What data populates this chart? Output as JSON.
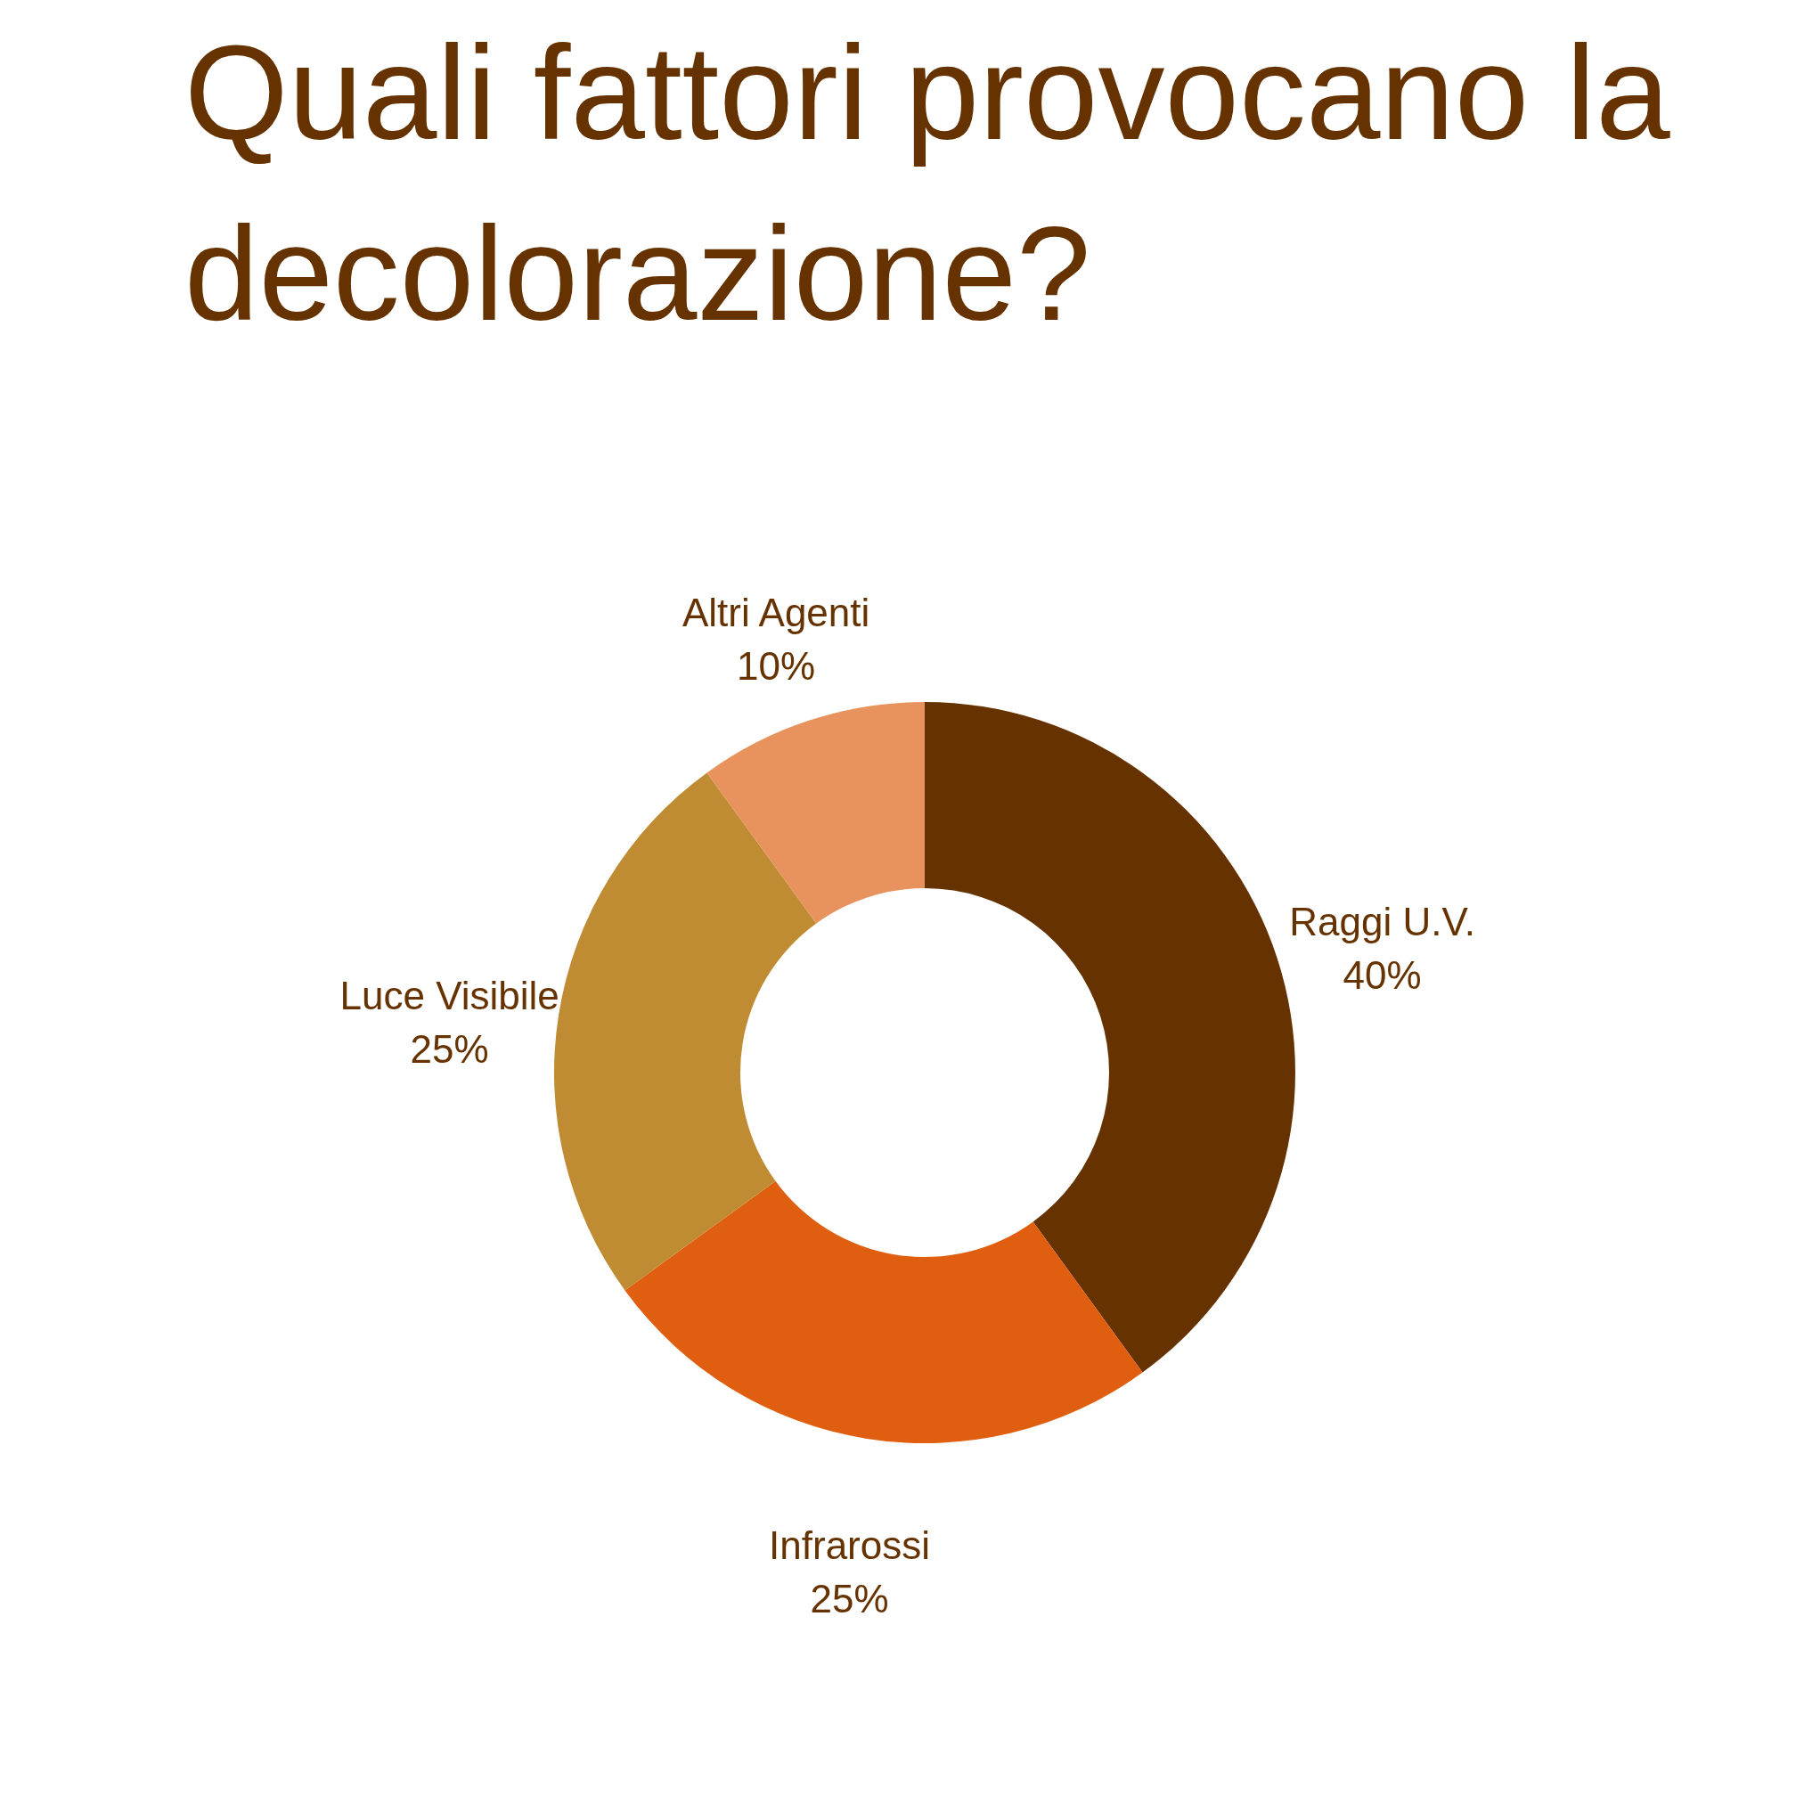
{
  "chart_data": {
    "type": "donut",
    "title": "Quali fattori provocano la decolorazione?",
    "categories": [
      "Raggi U.V.",
      "Infrarossi",
      "Luce Visibile",
      "Altri Agenti"
    ],
    "values": [
      40,
      25,
      25,
      10
    ],
    "colors": [
      "#663300",
      "#e05e10",
      "#c08c33",
      "#e8925e"
    ],
    "value_labels": [
      "40%",
      "25%",
      "25%",
      "10%"
    ],
    "legend": false
  }
}
